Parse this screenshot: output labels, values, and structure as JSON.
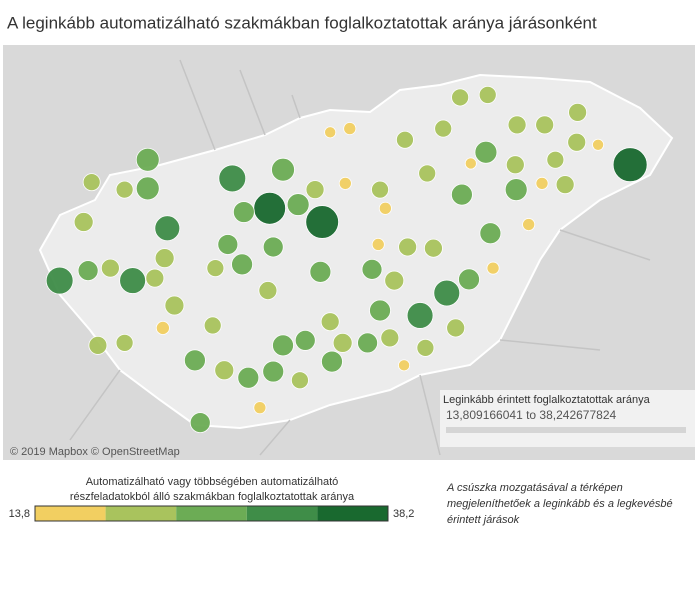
{
  "chart_data": {
    "type": "bubble_map",
    "title": "A leginkább automatizálható szakmákban foglalkoztatottak aránya járásonként",
    "attribution": "© 2019 Mapbox © OpenStreetMap",
    "filter_title": "Leginkább érintett foglalkoztatottak aránya",
    "filter_range": "13,809166041 to 38,242677824",
    "legend_title": [
      "Automatizálható vagy többségében automatizálható",
      "részfeladatokból álló szakmákban foglalkoztatottak aránya"
    ],
    "legend_ticks": [
      {
        "value": 13.8,
        "label": "13,8"
      },
      {
        "value": 38.2,
        "label": "38,2"
      }
    ],
    "colors": [
      "#f2cf61",
      "#a9c35d",
      "#6cac55",
      "#3f8d48",
      "#19692f"
    ],
    "note": [
      "A csúszka mozgatásával a térképen",
      "megjeleníthetőek a leginkább és a legkevésbé",
      "érintett járások"
    ],
    "lon": [
      18.63,
      19.22,
      22.68,
      18.21,
      16.27,
      17.09,
      20.62,
      20.32,
      17.48,
      17.26,
      17.26,
      18.78,
      18.95,
      18.34,
      21.06,
      20.79,
      21.4,
      21.11,
      20.87,
      19.2,
      19.78,
      18.32,
      18.67,
      18.16,
      17.45,
      16.59,
      16.84,
      16.54,
      17.56,
      17.34,
      17.79,
      17.85,
      18.12,
      18.39,
      18.67,
      18.78,
      19.03,
      19.33,
      19.31,
      19.45,
      19.73,
      19.87,
      20.03,
      20.18,
      20.47,
      20.72,
      19.98,
      20.38,
      19.48,
      19.85,
      20.89,
      21.14,
      21.54,
      17.43,
      18.52,
      20.14,
      19.53,
      19.31,
      19.93,
      22.32,
      21.69,
      16.63,
      17.0,
      21.95,
      21.84,
      22.08,
      22.09,
      21.72,
      21.41,
      20.77,
      21.08,
      20.58,
      20.15,
      20.4,
      21.39,
      16.7,
      17.0,
      18.02,
      18.61,
      18.97,
      17.99,
      19.87,
      19.14
    ],
    "lat": [
      47.53,
      47.42,
      47.88,
      47.77,
      46.95,
      46.95,
      46.85,
      46.67,
      47.37,
      47.92,
      47.69,
      47.84,
      47.56,
      47.5,
      47.98,
      47.64,
      47.68,
      47.33,
      46.96,
      47.02,
      47.04,
      47.08,
      47.22,
      47.24,
      47.13,
      47.03,
      47.05,
      47.42,
      46.75,
      46.97,
      46.31,
      45.81,
      46.23,
      46.17,
      46.22,
      46.43,
      46.47,
      46.3,
      46.62,
      46.45,
      46.45,
      46.71,
      46.95,
      47.22,
      47.21,
      46.57,
      46.49,
      46.41,
      47.73,
      47.24,
      47.89,
      47.05,
      47.4,
      46.57,
      45.93,
      46.27,
      48.17,
      48.14,
      47.53,
      48.04,
      47.73,
      47.74,
      47.68,
      47.72,
      47.92,
      48.06,
      48.3,
      48.2,
      48.2,
      48.42,
      48.44,
      48.17,
      48.08,
      47.81,
      47.88,
      46.43,
      46.45,
      47.05,
      46.87,
      46.15,
      46.59,
      47.68,
      47.68
    ],
    "values": [
      36,
      37,
      38.2,
      31,
      31,
      30,
      30,
      30,
      29,
      27,
      27,
      27,
      26,
      25,
      26,
      25,
      26,
      25,
      25,
      25,
      24,
      25,
      24,
      24,
      23,
      24,
      22,
      23,
      23,
      22,
      25,
      24,
      23,
      25,
      25,
      25,
      24,
      25,
      22,
      23,
      24,
      25,
      23,
      22,
      22,
      22,
      22,
      21,
      16,
      16,
      15,
      16,
      16,
      17,
      16,
      15,
      16,
      15,
      16,
      15,
      16,
      21,
      21,
      22,
      21,
      22,
      22,
      22,
      22,
      21,
      21,
      21,
      21,
      21,
      22,
      22,
      21,
      21,
      22,
      21,
      21,
      21,
      22
    ]
  }
}
